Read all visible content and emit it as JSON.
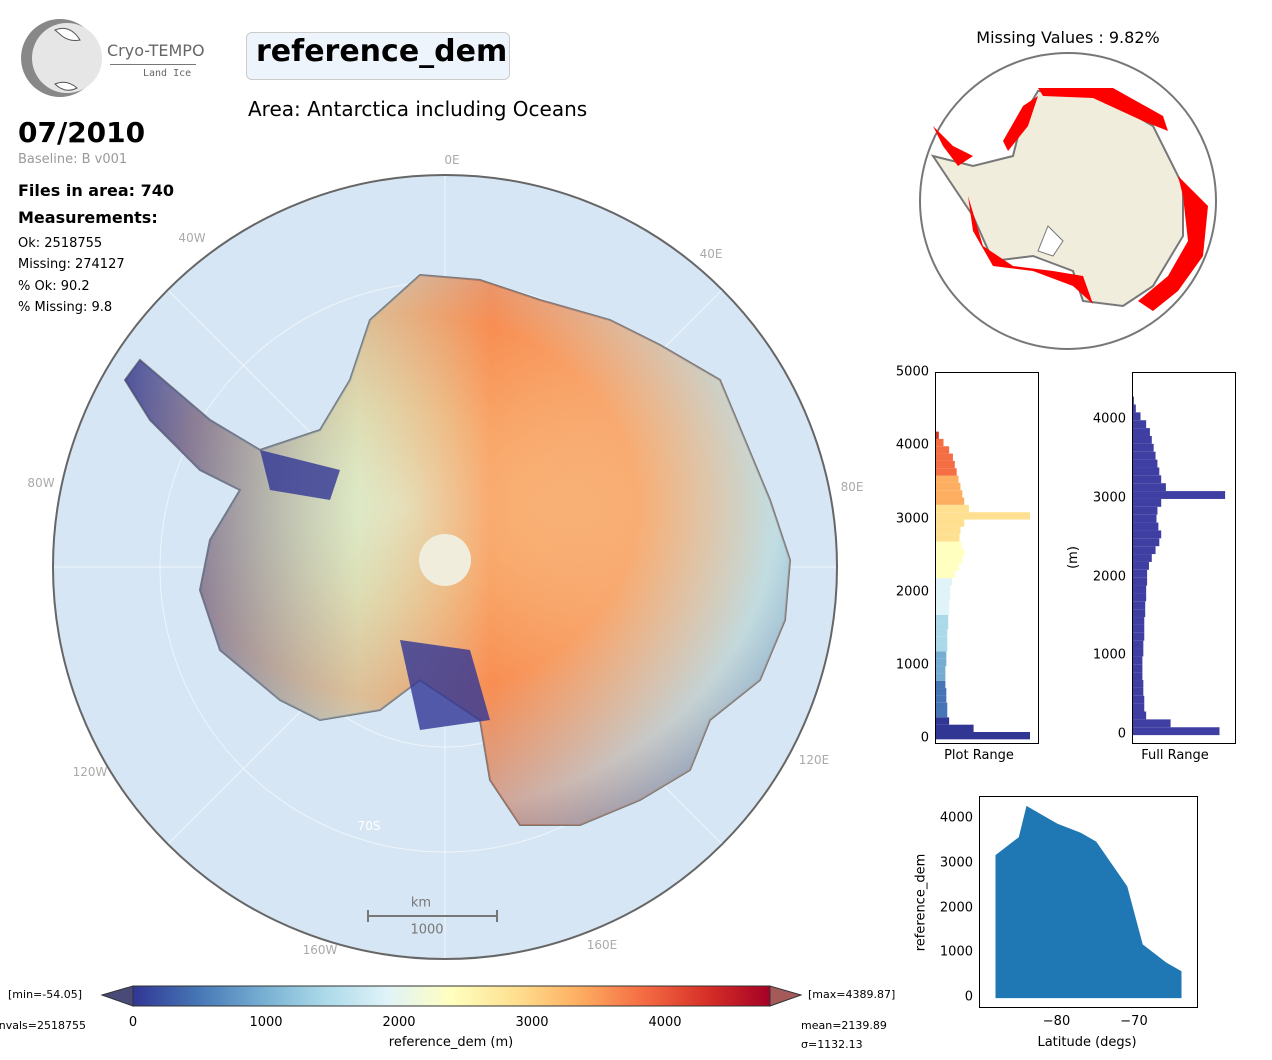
{
  "logo": {
    "name": "Cryo-TEMPO",
    "sub": "Land Ice"
  },
  "title": "reference_dem",
  "area": "Area: Antarctica including Oceans",
  "date": "07/2010",
  "baseline": "Baseline: B v001",
  "files": "Files in area: 740",
  "measurements": "Measurements:",
  "stats": [
    "Ok: 2518755",
    "Missing: 274127",
    "% Ok: 90.2",
    "% Missing: 9.8"
  ],
  "map": {
    "lon_labels": [
      "0E",
      "40E",
      "80E",
      "120E",
      "160E",
      "160W",
      "120W",
      "80W",
      "40W"
    ],
    "lat_label": "70S",
    "scale": {
      "unit": "km",
      "value": "1000"
    }
  },
  "colorbar": {
    "min_label": "[min=-54.05]",
    "max_label": "[max=4389.87]",
    "nvals": "nvals=2518755",
    "mean": "mean=2139.89",
    "sigma": "σ=1132.13",
    "ticks": [
      "0",
      "1000",
      "2000",
      "3000",
      "4000"
    ],
    "label": "reference_dem (m)",
    "colors": [
      "#313695",
      "#4575b4",
      "#74add1",
      "#abd9e9",
      "#e0f3f8",
      "#ffffbf",
      "#fee090",
      "#fdae61",
      "#f46d43",
      "#d73027",
      "#a50026"
    ]
  },
  "missing": {
    "title": "Missing Values : 9.82%",
    "color": "#ff0000"
  },
  "chart_data": [
    {
      "type": "bar",
      "title": "Plot Range",
      "orientation": "horizontal",
      "ylim": [
        -50,
        5000
      ],
      "yticks": [
        "0",
        "1000",
        "2000",
        "3000",
        "4000",
        "5000"
      ],
      "bin_width": 100,
      "bin_start": 0,
      "values": [
        1.0,
        0.4,
        0.14,
        0.12,
        0.12,
        0.11,
        0.11,
        0.1,
        0.1,
        0.1,
        0.11,
        0.11,
        0.12,
        0.12,
        0.12,
        0.13,
        0.13,
        0.14,
        0.14,
        0.15,
        0.15,
        0.17,
        0.2,
        0.24,
        0.28,
        0.3,
        0.27,
        0.25,
        0.26,
        0.3,
        1.0,
        0.35,
        0.3,
        0.28,
        0.26,
        0.24,
        0.22,
        0.2,
        0.18,
        0.14,
        0.08,
        0.03
      ]
    },
    {
      "type": "bar",
      "title": "Full Range",
      "ylabel": "(m)",
      "orientation": "horizontal",
      "ylim": [
        -100,
        4600
      ],
      "yticks": [
        "0",
        "1000",
        "2000",
        "3000",
        "4000"
      ],
      "bin_width": 100,
      "bin_start": 0,
      "values": [
        0.92,
        0.4,
        0.14,
        0.12,
        0.12,
        0.11,
        0.11,
        0.1,
        0.1,
        0.1,
        0.11,
        0.11,
        0.12,
        0.12,
        0.12,
        0.13,
        0.13,
        0.14,
        0.14,
        0.15,
        0.15,
        0.17,
        0.2,
        0.24,
        0.28,
        0.3,
        0.27,
        0.25,
        0.26,
        0.3,
        0.98,
        0.35,
        0.3,
        0.28,
        0.26,
        0.24,
        0.22,
        0.2,
        0.18,
        0.14,
        0.08,
        0.03,
        0.01
      ]
    },
    {
      "type": "scatter",
      "xlabel": "Latitude (degs)",
      "ylabel": "reference_dem",
      "xticks": [
        "−80",
        "−70"
      ],
      "yticks": [
        "0",
        "1000",
        "2000",
        "3000",
        "4000"
      ],
      "xlim": [
        -90,
        -62
      ],
      "ylim": [
        -200,
        4500
      ],
      "color": "#1f77b4",
      "envelope": [
        [
          -88,
          3200
        ],
        [
          -85,
          3600
        ],
        [
          -84,
          4300
        ],
        [
          -82,
          4100
        ],
        [
          -80,
          3900
        ],
        [
          -77,
          3700
        ],
        [
          -75,
          3500
        ],
        [
          -73,
          3000
        ],
        [
          -71,
          2500
        ],
        [
          -69,
          1200
        ],
        [
          -66,
          800
        ],
        [
          -64,
          600
        ],
        [
          -64,
          0
        ],
        [
          -88,
          0
        ]
      ]
    }
  ]
}
